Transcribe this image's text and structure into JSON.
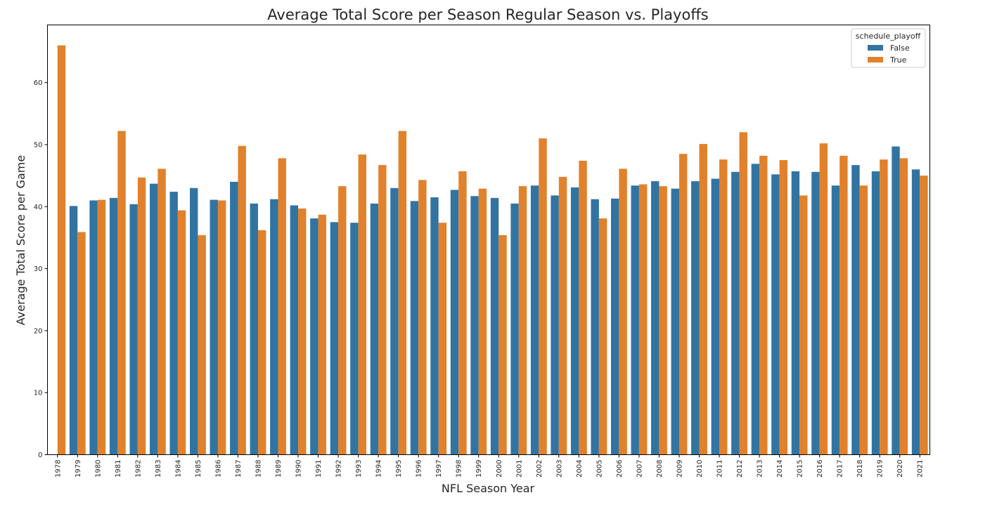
{
  "colors": {
    "False": "#3274a1",
    "True": "#e1812c",
    "axes": "#000000",
    "legend_border": "#cccccc"
  },
  "chart_data": {
    "type": "bar",
    "title": "Average Total Score per Season Regular Season vs. Playoffs",
    "xlabel": "NFL Season Year",
    "ylabel": "Average Total Score per Game",
    "ylim": [
      0,
      69.3
    ],
    "yticks": [
      0,
      10,
      20,
      30,
      40,
      50,
      60
    ],
    "grid": false,
    "legend": {
      "title": "schedule_playoff",
      "placement": "top-right"
    },
    "categories": [
      "1978",
      "1979",
      "1980",
      "1981",
      "1982",
      "1983",
      "1984",
      "1985",
      "1986",
      "1987",
      "1988",
      "1989",
      "1990",
      "1991",
      "1992",
      "1993",
      "1994",
      "1995",
      "1996",
      "1997",
      "1998",
      "1999",
      "2000",
      "2001",
      "2002",
      "2003",
      "2004",
      "2005",
      "2006",
      "2007",
      "2008",
      "2009",
      "2010",
      "2011",
      "2012",
      "2013",
      "2014",
      "2015",
      "2016",
      "2017",
      "2018",
      "2019",
      "2020",
      "2021"
    ],
    "series": [
      {
        "name": "False",
        "values": [
          null,
          40.1,
          41.0,
          41.4,
          40.4,
          43.7,
          42.4,
          43.0,
          41.1,
          44.0,
          40.5,
          41.2,
          40.2,
          38.1,
          37.5,
          37.4,
          40.5,
          43.0,
          40.9,
          41.5,
          42.7,
          41.7,
          41.4,
          40.5,
          43.4,
          41.8,
          43.1,
          41.2,
          41.3,
          43.4,
          44.1,
          42.9,
          44.1,
          44.5,
          45.6,
          46.9,
          45.2,
          45.7,
          45.6,
          43.4,
          46.7,
          45.7,
          49.7,
          46.0
        ]
      },
      {
        "name": "True",
        "values": [
          66.0,
          35.9,
          41.1,
          52.2,
          44.7,
          46.1,
          39.4,
          35.4,
          41.0,
          49.8,
          36.2,
          47.8,
          39.7,
          38.7,
          43.3,
          48.4,
          46.7,
          52.2,
          44.3,
          37.4,
          45.7,
          42.9,
          35.4,
          43.3,
          51.0,
          44.8,
          47.4,
          38.1,
          46.1,
          43.6,
          43.3,
          48.5,
          50.1,
          47.6,
          52.0,
          48.2,
          47.5,
          41.8,
          50.2,
          48.2,
          43.4,
          47.6,
          47.8,
          45.0
        ]
      }
    ]
  }
}
